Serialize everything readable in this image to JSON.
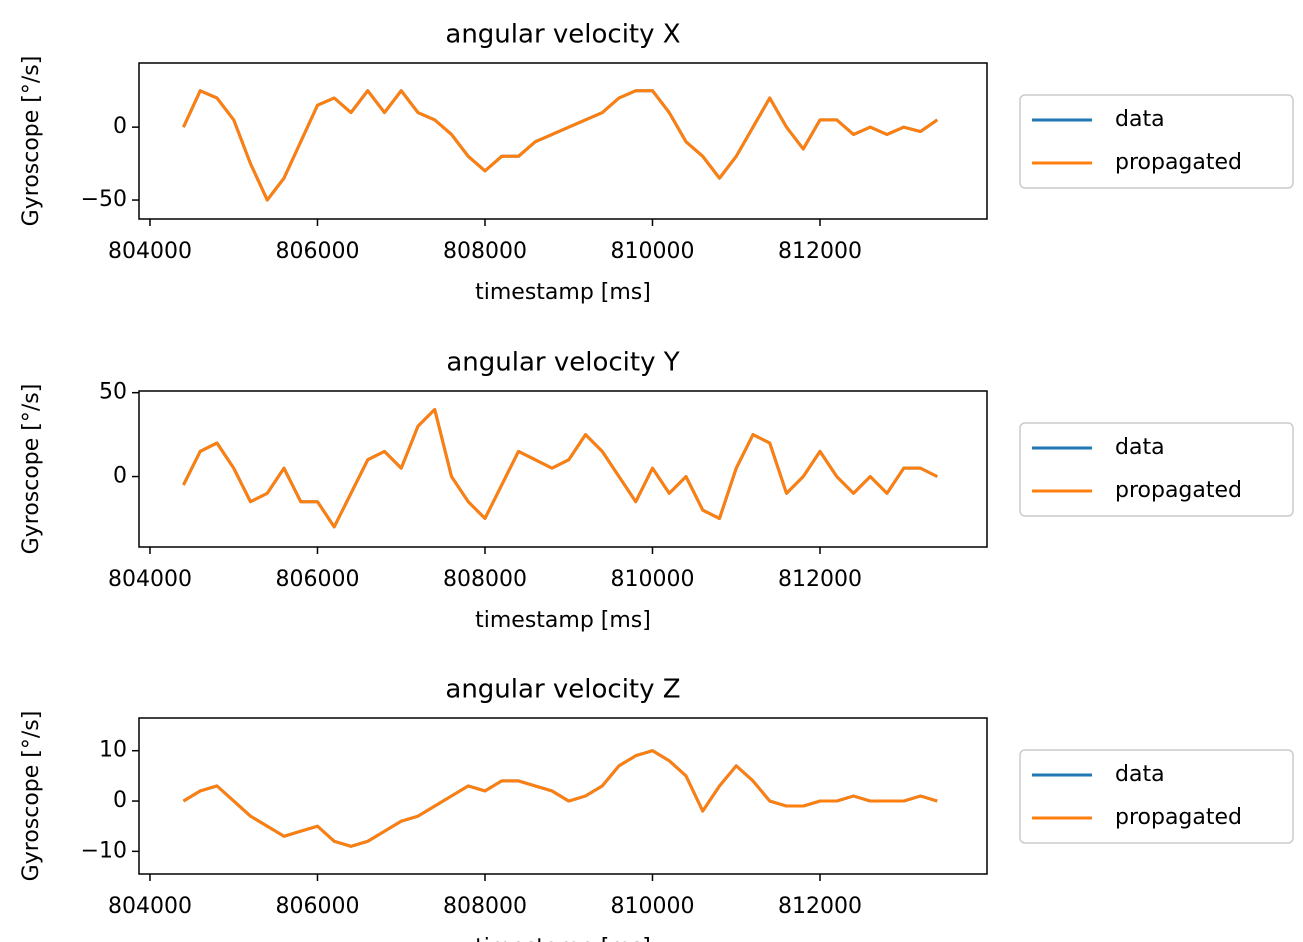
{
  "chart_data": [
    {
      "type": "line",
      "title": "angular velocity X",
      "x_label": "timestamp [ms]",
      "y_label": "Gyroscope [°/s]",
      "x": [
        804400,
        804600,
        804800,
        805000,
        805200,
        805400,
        805600,
        805800,
        806000,
        806200,
        806400,
        806600,
        806800,
        807000,
        807200,
        807400,
        807600,
        807800,
        808000,
        808200,
        808400,
        808600,
        808800,
        809000,
        809200,
        809400,
        809600,
        809800,
        810000,
        810200,
        810400,
        810600,
        810800,
        811000,
        811200,
        811400,
        811600,
        811800,
        812000,
        812200,
        812400,
        812600,
        812800,
        813000,
        813200,
        813400
      ],
      "series": [
        {
          "name": "data",
          "color": "#1f77b4",
          "values": [
            0,
            25,
            20,
            5,
            -25,
            -50,
            -35,
            -10,
            15,
            20,
            10,
            25,
            10,
            25,
            10,
            5,
            -5,
            -20,
            -30,
            -20,
            -20,
            -10,
            -5,
            0,
            5,
            10,
            20,
            25,
            25,
            10,
            -10,
            -20,
            -35,
            -20,
            0,
            20,
            0,
            -15,
            5,
            5,
            -5,
            0,
            -5,
            0,
            -3,
            5
          ]
        },
        {
          "name": "propagated",
          "color": "#ff7f0e",
          "values": [
            0,
            25,
            20,
            5,
            -25,
            -50,
            -35,
            -10,
            15,
            20,
            10,
            25,
            10,
            25,
            10,
            5,
            -5,
            -20,
            -30,
            -20,
            -20,
            -10,
            -5,
            0,
            5,
            10,
            20,
            25,
            25,
            10,
            -10,
            -20,
            -35,
            -20,
            0,
            20,
            0,
            -15,
            5,
            5,
            -5,
            0,
            -5,
            0,
            -3,
            5
          ]
        }
      ],
      "xlim": [
        803869,
        813994
      ],
      "xticks": [
        804000,
        806000,
        808000,
        810000,
        812000
      ],
      "ylim": [
        -63,
        44
      ],
      "yticks": [
        {
          "value": -50,
          "label": "−50"
        },
        0
      ]
    },
    {
      "type": "line",
      "title": "angular velocity Y",
      "x_label": "timestamp [ms]",
      "y_label": "Gyroscope [°/s]",
      "x": [
        804400,
        804600,
        804800,
        805000,
        805200,
        805400,
        805600,
        805800,
        806000,
        806200,
        806400,
        806600,
        806800,
        807000,
        807200,
        807400,
        807600,
        807800,
        808000,
        808200,
        808400,
        808600,
        808800,
        809000,
        809200,
        809400,
        809600,
        809800,
        810000,
        810200,
        810400,
        810600,
        810800,
        811000,
        811200,
        811400,
        811600,
        811800,
        812000,
        812200,
        812400,
        812600,
        812800,
        813000,
        813200,
        813400
      ],
      "series": [
        {
          "name": "data",
          "color": "#1f77b4",
          "values": [
            -5,
            15,
            20,
            5,
            -15,
            -10,
            5,
            -15,
            -15,
            -30,
            -10,
            10,
            15,
            5,
            30,
            40,
            0,
            -15,
            -25,
            -5,
            15,
            10,
            5,
            10,
            25,
            15,
            0,
            -15,
            5,
            -10,
            0,
            -20,
            -25,
            5,
            25,
            20,
            -10,
            0,
            15,
            0,
            -10,
            0,
            -10,
            5,
            5,
            0
          ]
        },
        {
          "name": "propagated",
          "color": "#ff7f0e",
          "values": [
            -5,
            15,
            20,
            5,
            -15,
            -10,
            5,
            -15,
            -15,
            -30,
            -10,
            10,
            15,
            5,
            30,
            40,
            0,
            -15,
            -25,
            -5,
            15,
            10,
            5,
            10,
            25,
            15,
            0,
            -15,
            5,
            -10,
            0,
            -20,
            -25,
            5,
            25,
            20,
            -10,
            0,
            15,
            0,
            -10,
            0,
            -10,
            5,
            5,
            0
          ]
        }
      ],
      "xlim": [
        803869,
        813994
      ],
      "xticks": [
        804000,
        806000,
        808000,
        810000,
        812000
      ],
      "ylim": [
        -42,
        51
      ],
      "yticks": [
        0,
        50
      ]
    },
    {
      "type": "line",
      "title": "angular velocity Z",
      "x_label": "timestamp [ms]",
      "y_label": "Gyroscope [°/s]",
      "x": [
        804400,
        804600,
        804800,
        805000,
        805200,
        805400,
        805600,
        805800,
        806000,
        806200,
        806400,
        806600,
        806800,
        807000,
        807200,
        807400,
        807600,
        807800,
        808000,
        808200,
        808400,
        808600,
        808800,
        809000,
        809200,
        809400,
        809600,
        809800,
        810000,
        810200,
        810400,
        810600,
        810800,
        811000,
        811200,
        811400,
        811600,
        811800,
        812000,
        812200,
        812400,
        812600,
        812800,
        813000,
        813200,
        813400
      ],
      "series": [
        {
          "name": "data",
          "color": "#1f77b4",
          "values": [
            0,
            2,
            3,
            0,
            -3,
            -5,
            -7,
            -6,
            -5,
            -8,
            -9,
            -8,
            -6,
            -4,
            -3,
            -1,
            1,
            3,
            2,
            4,
            4,
            3,
            2,
            0,
            1,
            3,
            7,
            9,
            10,
            8,
            5,
            -2,
            3,
            7,
            4,
            0,
            -1,
            -1,
            0,
            0,
            1,
            0,
            0,
            0,
            1,
            0
          ]
        },
        {
          "name": "propagated",
          "color": "#ff7f0e",
          "values": [
            0,
            2,
            3,
            0,
            -3,
            -5,
            -7,
            -6,
            -5,
            -8,
            -9,
            -8,
            -6,
            -4,
            -3,
            -1,
            1,
            3,
            2,
            4,
            4,
            3,
            2,
            0,
            1,
            3,
            7,
            9,
            10,
            8,
            5,
            -2,
            3,
            7,
            4,
            0,
            -1,
            -1,
            0,
            0,
            1,
            0,
            0,
            0,
            1,
            0
          ]
        }
      ],
      "xlim": [
        803869,
        813994
      ],
      "xticks": [
        804000,
        806000,
        808000,
        810000,
        812000
      ],
      "ylim": [
        -14.5,
        16.5
      ],
      "yticks": [
        {
          "value": -10,
          "label": "−10"
        },
        0,
        10
      ]
    }
  ]
}
